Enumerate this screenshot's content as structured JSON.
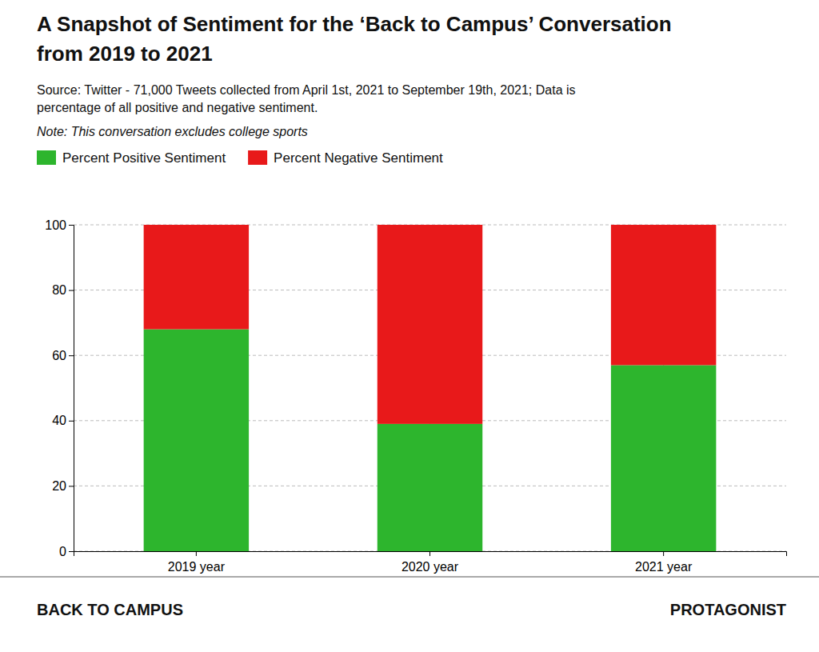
{
  "chart_data": {
    "type": "bar",
    "stacked": true,
    "title": "A Snapshot of Sentiment for the ‘Back to Campus’ Conversation",
    "subtitle": "from 2019 to 2021",
    "annotations": [
      "Source: Twitter - 71,000 Tweets collected from April 1st, 2021 to September 19th, 2021; Data is\npercentage of all positive and negative sentiment.",
      "Note: This conversation excludes college sports",
      "BACK TO CAMPUS",
      "PROTAGONIST"
    ],
    "categories": [
      "2019 year",
      "2020 year",
      "2021 year"
    ],
    "series": [
      {
        "name": "Percent Positive Sentiment",
        "color": "#2db52d",
        "values": [
          68,
          39,
          57
        ]
      },
      {
        "name": "Percent Negative Sentiment",
        "color": "#e8191a",
        "values": [
          32,
          61,
          43
        ]
      }
    ],
    "ylim": [
      0,
      100
    ],
    "yticks": [
      0,
      20,
      40,
      60,
      80,
      100
    ],
    "grid": true,
    "legend": "top"
  }
}
